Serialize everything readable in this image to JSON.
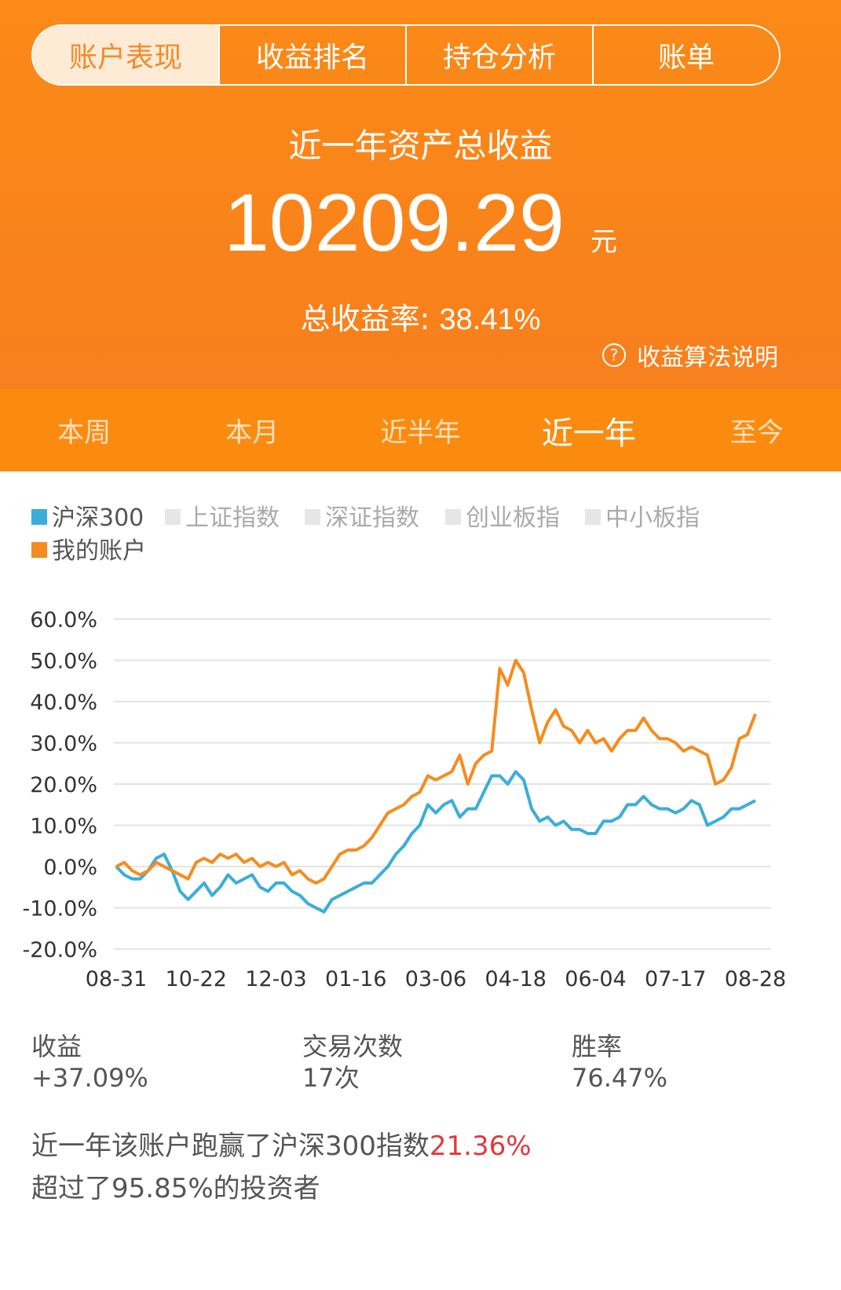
{
  "top_tabs": [
    "账户表现",
    "收益排名",
    "持仓分析",
    "账单"
  ],
  "header": {
    "title": "近一年资产总收益",
    "amount": "10209.29",
    "unit": "元",
    "rate_label": "总收益率:",
    "rate": "38.41%",
    "help": "收益算法说明"
  },
  "period_tabs": [
    "本周",
    "本月",
    "近半年",
    "近一年",
    "至今"
  ],
  "chart_data": {
    "type": "line",
    "categories": [
      "08-31",
      null,
      null,
      null,
      null,
      null,
      null,
      null,
      null,
      null,
      "10-22",
      null,
      null,
      null,
      null,
      null,
      null,
      null,
      null,
      null,
      "12-03",
      null,
      null,
      null,
      null,
      null,
      null,
      null,
      null,
      null,
      "01-16",
      null,
      null,
      null,
      null,
      null,
      null,
      null,
      null,
      null,
      "03-06",
      null,
      null,
      null,
      null,
      null,
      null,
      null,
      null,
      null,
      "04-18",
      null,
      null,
      null,
      null,
      null,
      null,
      null,
      null,
      null,
      "06-04",
      null,
      null,
      null,
      null,
      null,
      null,
      null,
      null,
      null,
      "07-17",
      null,
      null,
      null,
      null,
      null,
      null,
      null,
      null,
      null,
      "08-28"
    ],
    "series": [
      {
        "name": "沪深300",
        "color": "#3aaed8",
        "values": [
          0,
          -2,
          -3,
          -3,
          -1,
          2,
          3,
          -1,
          -6,
          -8,
          -6,
          -4,
          -7,
          -5,
          -2,
          -4,
          -3,
          -2,
          -5,
          -6,
          -4,
          -4,
          -6,
          -7,
          -9,
          -10,
          -11,
          -8,
          -7,
          -6,
          -5,
          -4,
          -4,
          -2,
          0,
          3,
          5,
          8,
          10,
          15,
          13,
          15,
          16,
          12,
          14,
          14,
          18,
          22,
          22,
          20,
          23,
          21,
          14,
          11,
          12,
          10,
          11,
          9,
          9,
          8,
          8,
          11,
          11,
          12,
          15,
          15,
          17,
          15,
          14,
          14,
          13,
          14,
          16,
          15,
          10,
          11,
          12,
          14,
          14,
          15,
          16
        ]
      },
      {
        "name": "上证指数",
        "color": "#e6e6e6"
      },
      {
        "name": "深证指数",
        "color": "#e6e6e6"
      },
      {
        "name": "创业板指",
        "color": "#e6e6e6"
      },
      {
        "name": "中小板指",
        "color": "#e6e6e6"
      },
      {
        "name": "我的账户",
        "color": "#f58c1f",
        "values": [
          0,
          1,
          -1,
          -2,
          -1,
          1,
          0,
          -1,
          -2,
          -3,
          1,
          2,
          1,
          3,
          2,
          3,
          1,
          2,
          0,
          1,
          0,
          1,
          -2,
          -1,
          -3,
          -4,
          -3,
          0,
          3,
          4,
          4,
          5,
          7,
          10,
          13,
          14,
          15,
          17,
          18,
          22,
          21,
          22,
          23,
          27,
          20,
          25,
          27,
          28,
          48,
          44,
          50,
          47,
          38,
          30,
          35,
          38,
          34,
          33,
          30,
          33,
          30,
          31,
          28,
          31,
          33,
          33,
          36,
          33,
          31,
          31,
          30,
          28,
          29,
          28,
          27,
          20,
          21,
          24,
          31,
          32,
          37
        ]
      }
    ],
    "ylim": [
      -20,
      60
    ],
    "yticks": [
      {
        "value": -20,
        "label": "-20.0%"
      },
      {
        "value": -10,
        "label": "-10.0%"
      },
      {
        "value": 0,
        "label": "0.0%"
      },
      {
        "value": 10,
        "label": "10.0%"
      },
      {
        "value": 20,
        "label": "20.0%"
      },
      {
        "value": 30,
        "label": "30.0%"
      },
      {
        "value": 40,
        "label": "40.0%"
      },
      {
        "value": 50,
        "label": "50.0%"
      },
      {
        "value": 60,
        "label": "60.0%"
      }
    ],
    "grid": true
  },
  "stats": [
    {
      "label": "收益",
      "value": "+37.09%"
    },
    {
      "label": "交易次数",
      "value": "17次"
    },
    {
      "label": "胜率",
      "value": "76.47%"
    }
  ],
  "summary": {
    "line1": "近一年该账户跑赢了沪深300指数",
    "line1_highlight": "21.36%",
    "line2": "超过了95.85%的投资者"
  }
}
